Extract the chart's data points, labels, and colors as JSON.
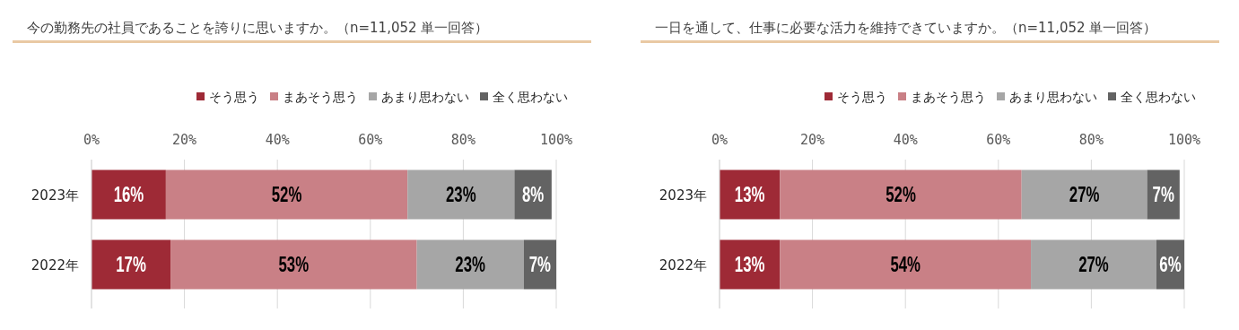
{
  "chart_data": [
    {
      "type": "bar",
      "orientation": "horizontal",
      "stacked": true,
      "title": "今の勤務先の社員であることを誇りに思いますか。（n=11,052 単一回答）",
      "categories": [
        "2023年",
        "2022年"
      ],
      "series": [
        {
          "name": "そう思う",
          "color": "#9e2a36",
          "values": [
            16,
            17
          ],
          "value_labels": [
            "16%",
            "17%"
          ]
        },
        {
          "name": "まあそう思う",
          "color": "#c98086",
          "values": [
            52,
            53
          ],
          "value_labels": [
            "52%",
            "53%"
          ]
        },
        {
          "name": "あまり思わない",
          "color": "#a6a6a6",
          "values": [
            23,
            23
          ],
          "value_labels": [
            "23%",
            "23%"
          ]
        },
        {
          "name": "全く思わない",
          "color": "#636363",
          "values": [
            8,
            7
          ],
          "value_labels": [
            "8%",
            "7%"
          ]
        }
      ],
      "xlim": [
        0,
        100
      ],
      "xticks": [
        {
          "value": 0,
          "label": "0%"
        },
        {
          "value": 20,
          "label": "20%"
        },
        {
          "value": 40,
          "label": "40%"
        },
        {
          "value": 60,
          "label": "60%"
        },
        {
          "value": 80,
          "label": "80%"
        },
        {
          "value": 100,
          "label": "100%"
        }
      ],
      "grid": "x",
      "legend": "top right"
    },
    {
      "type": "bar",
      "orientation": "horizontal",
      "stacked": true,
      "title": "一日を通して、仕事に必要な活力を維持できていますか。（n=11,052 単一回答）",
      "categories": [
        "2023年",
        "2022年"
      ],
      "series": [
        {
          "name": "そう思う",
          "color": "#9e2a36",
          "values": [
            13,
            13
          ],
          "value_labels": [
            "13%",
            "13%"
          ]
        },
        {
          "name": "まあそう思う",
          "color": "#c98086",
          "values": [
            52,
            54
          ],
          "value_labels": [
            "52%",
            "54%"
          ]
        },
        {
          "name": "あまり思わない",
          "color": "#a6a6a6",
          "values": [
            27,
            27
          ],
          "value_labels": [
            "27%",
            "27%"
          ]
        },
        {
          "name": "全く思わない",
          "color": "#636363",
          "values": [
            7,
            6
          ],
          "value_labels": [
            "7%",
            "6%"
          ]
        }
      ],
      "xlim": [
        0,
        100
      ],
      "xticks": [
        {
          "value": 0,
          "label": "0%"
        },
        {
          "value": 20,
          "label": "20%"
        },
        {
          "value": 40,
          "label": "40%"
        },
        {
          "value": 60,
          "label": "60%"
        },
        {
          "value": 80,
          "label": "80%"
        },
        {
          "value": 100,
          "label": "100%"
        }
      ],
      "grid": "x",
      "legend": "top right"
    }
  ]
}
